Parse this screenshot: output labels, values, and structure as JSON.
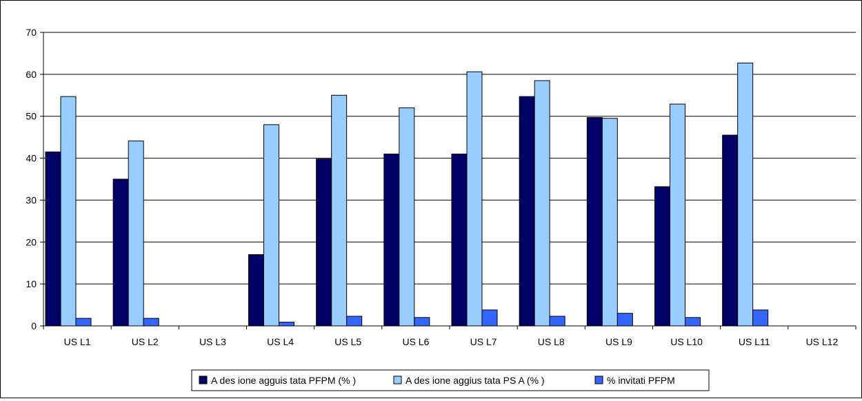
{
  "chart_data": {
    "type": "bar",
    "categories": [
      "US L1",
      "US L2",
      "US L3",
      "US L4",
      "US L5",
      "US L6",
      "US L7",
      "US L8",
      "US L9",
      "US L10",
      "US L11",
      "US L12"
    ],
    "series": [
      {
        "name": "A des ione agguis tata PFPM (% )",
        "color": "#000066",
        "values": [
          41.5,
          35.0,
          null,
          17.0,
          39.8,
          41.0,
          41.0,
          54.7,
          49.7,
          33.2,
          45.5,
          null
        ]
      },
      {
        "name": "A des ione aggius tata PS A (% )",
        "color": "#99ccff",
        "values": [
          54.7,
          44.1,
          null,
          48.0,
          55.0,
          52.0,
          60.6,
          58.5,
          49.5,
          52.9,
          62.7,
          null
        ]
      },
      {
        "name": "% invitati PFPM",
        "color": "#3366ff",
        "values": [
          1.8,
          1.8,
          null,
          0.9,
          2.3,
          2.0,
          3.8,
          2.3,
          3.0,
          2.0,
          3.8,
          null
        ]
      }
    ],
    "y_ticks": [
      "0",
      "10",
      "20",
      "30",
      "40",
      "50",
      "60",
      "70"
    ],
    "ylim": [
      0,
      70
    ],
    "grid": true,
    "legend_position": "bottom",
    "title": "",
    "xlabel": "",
    "ylabel": ""
  }
}
